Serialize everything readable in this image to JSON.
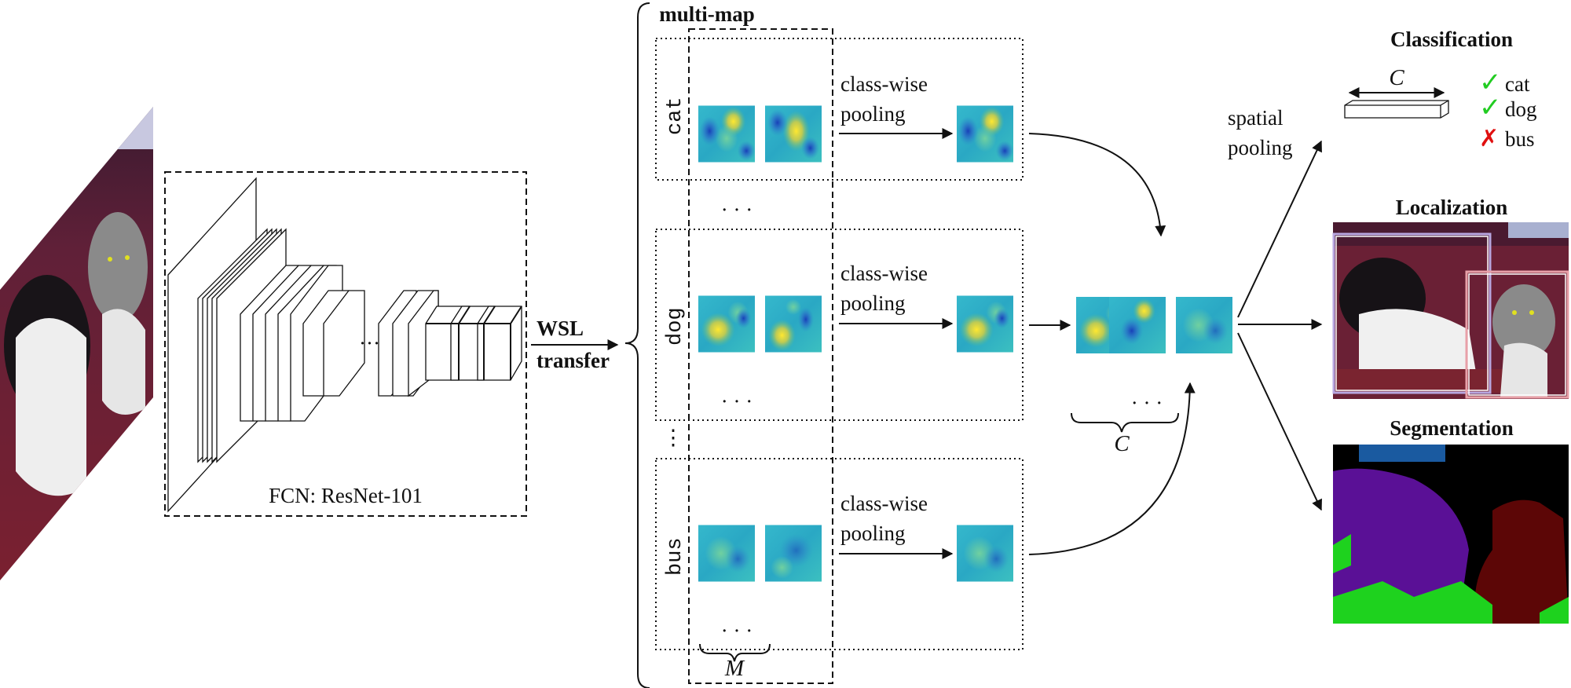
{
  "backbone": {
    "caption": "FCN: ResNet-101",
    "ellipsis": "···"
  },
  "transfer": {
    "line1": "WSL",
    "line2": "transfer"
  },
  "multimap": {
    "title": "multi-map",
    "class_labels": [
      "cat",
      "dog",
      "bus"
    ],
    "ellipsis": "· · ·",
    "vertical_ellipsis": "⋮",
    "map_count_symbol": "M"
  },
  "pooling": {
    "line1": "class-wise",
    "line2": "pooling"
  },
  "class_stack": {
    "count_symbol": "C",
    "ellipsis": "· · ·"
  },
  "spatial_pooling": {
    "line1": "spatial",
    "line2": "pooling"
  },
  "outputs": {
    "classification": {
      "title": "Classification",
      "vector_symbol": "C",
      "results": [
        {
          "label": "cat",
          "mark": "✓"
        },
        {
          "label": "dog",
          "mark": "✓"
        },
        {
          "label": "bus",
          "mark": "✗"
        }
      ]
    },
    "localization": {
      "title": "Localization"
    },
    "segmentation": {
      "title": "Segmentation"
    }
  },
  "colors": {
    "check": "#22cc22",
    "cross": "#e01010",
    "seg_dog": "#5a1096",
    "seg_cat": "#5c0606",
    "seg_green": "#1ed21e",
    "seg_blue": "#1a5aa0",
    "box_purple": "#b8a6e0",
    "box_pink": "#e8a0a8",
    "heat_base": "#2ab0c8"
  }
}
